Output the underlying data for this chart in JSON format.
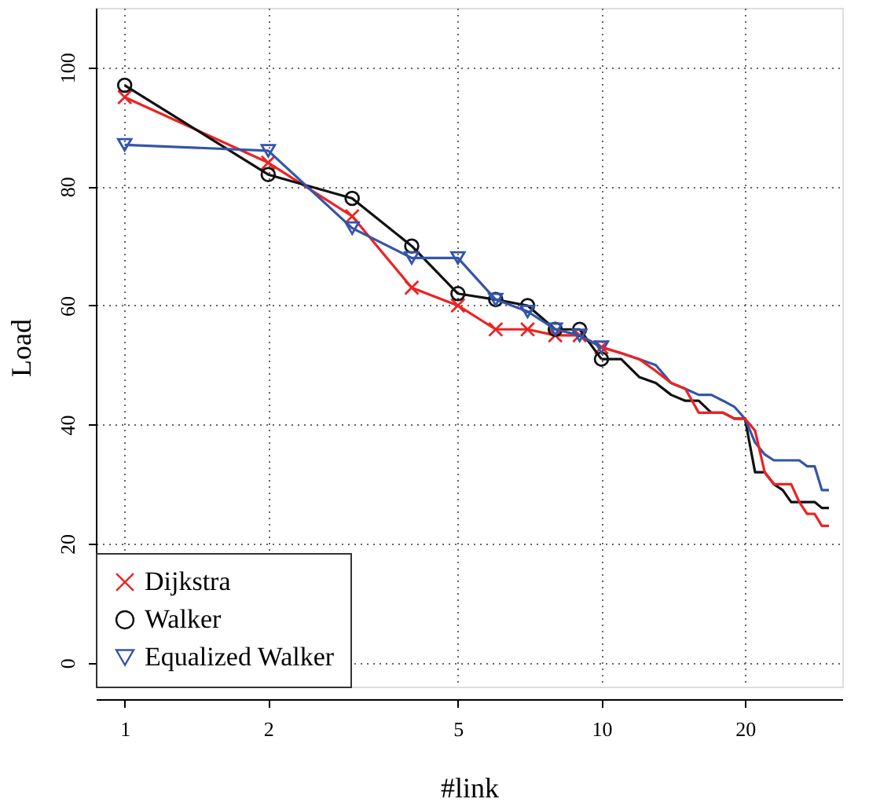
{
  "chart_data": {
    "type": "line",
    "xlabel": "#link",
    "ylabel": "Load",
    "log": "x",
    "xlim": [
      0.87,
      32
    ],
    "xticks": [
      1,
      2,
      5,
      10,
      20
    ],
    "ylim": [
      -4,
      110
    ],
    "yticks": [
      0,
      20,
      40,
      60,
      80,
      100
    ],
    "grid": true,
    "legend": "bottom left",
    "line_style": "solid",
    "series": [
      {
        "name": "Dijkstra",
        "color": "#ee2222",
        "marker": "cross",
        "x": [
          1,
          2,
          3,
          4,
          5,
          6,
          7,
          8,
          9,
          10
        ],
        "values": [
          95,
          84,
          75,
          63,
          60,
          56,
          56,
          55,
          55,
          53
        ]
      },
      {
        "name": "Walker",
        "color": "#111111",
        "marker": "circle",
        "x": [
          1,
          2,
          3,
          4,
          5,
          6,
          7,
          8,
          9,
          10
        ],
        "values": [
          97,
          82,
          78,
          70,
          62,
          61,
          60,
          56,
          56,
          51
        ]
      },
      {
        "name": "Equalized Walker",
        "color": "#3355aa",
        "marker": "triangle",
        "x": [
          1,
          2,
          3,
          4,
          5,
          6,
          7,
          8,
          9,
          10
        ],
        "values": [
          87,
          86,
          73,
          68,
          68,
          61,
          59,
          56,
          55,
          53
        ]
      },
      {
        "color": "#111111",
        "marker": "none",
        "x": [
          10,
          11,
          12,
          13,
          14,
          15,
          16,
          17,
          18,
          19,
          20,
          21,
          22,
          23,
          24,
          25,
          26,
          27,
          28,
          29,
          30
        ],
        "values": [
          51,
          51,
          48,
          47,
          45,
          44,
          44,
          42,
          42,
          41,
          41,
          32,
          32,
          30,
          29,
          27,
          27,
          27,
          27,
          26,
          26
        ]
      },
      {
        "color": "#3355aa",
        "marker": "none",
        "x": [
          10,
          11,
          12,
          13,
          14,
          15,
          16,
          17,
          18,
          19,
          20,
          21,
          22,
          23,
          24,
          25,
          26,
          27,
          28,
          29,
          30
        ],
        "values": [
          53,
          52,
          51,
          50,
          47,
          46,
          45,
          45,
          44,
          43,
          41,
          37,
          35,
          34,
          34,
          34,
          34,
          33,
          33,
          29,
          29
        ]
      },
      {
        "color": "#ee2222",
        "marker": "none",
        "x": [
          10,
          11,
          12,
          13,
          14,
          15,
          16,
          17,
          18,
          19,
          20,
          21,
          22,
          23,
          24,
          25,
          26,
          27,
          28,
          29,
          30
        ],
        "values": [
          53,
          52,
          51,
          49,
          47,
          46,
          42,
          42,
          42,
          41,
          41,
          39,
          32,
          30,
          30,
          30,
          27,
          25,
          25,
          23,
          23
        ]
      }
    ]
  }
}
